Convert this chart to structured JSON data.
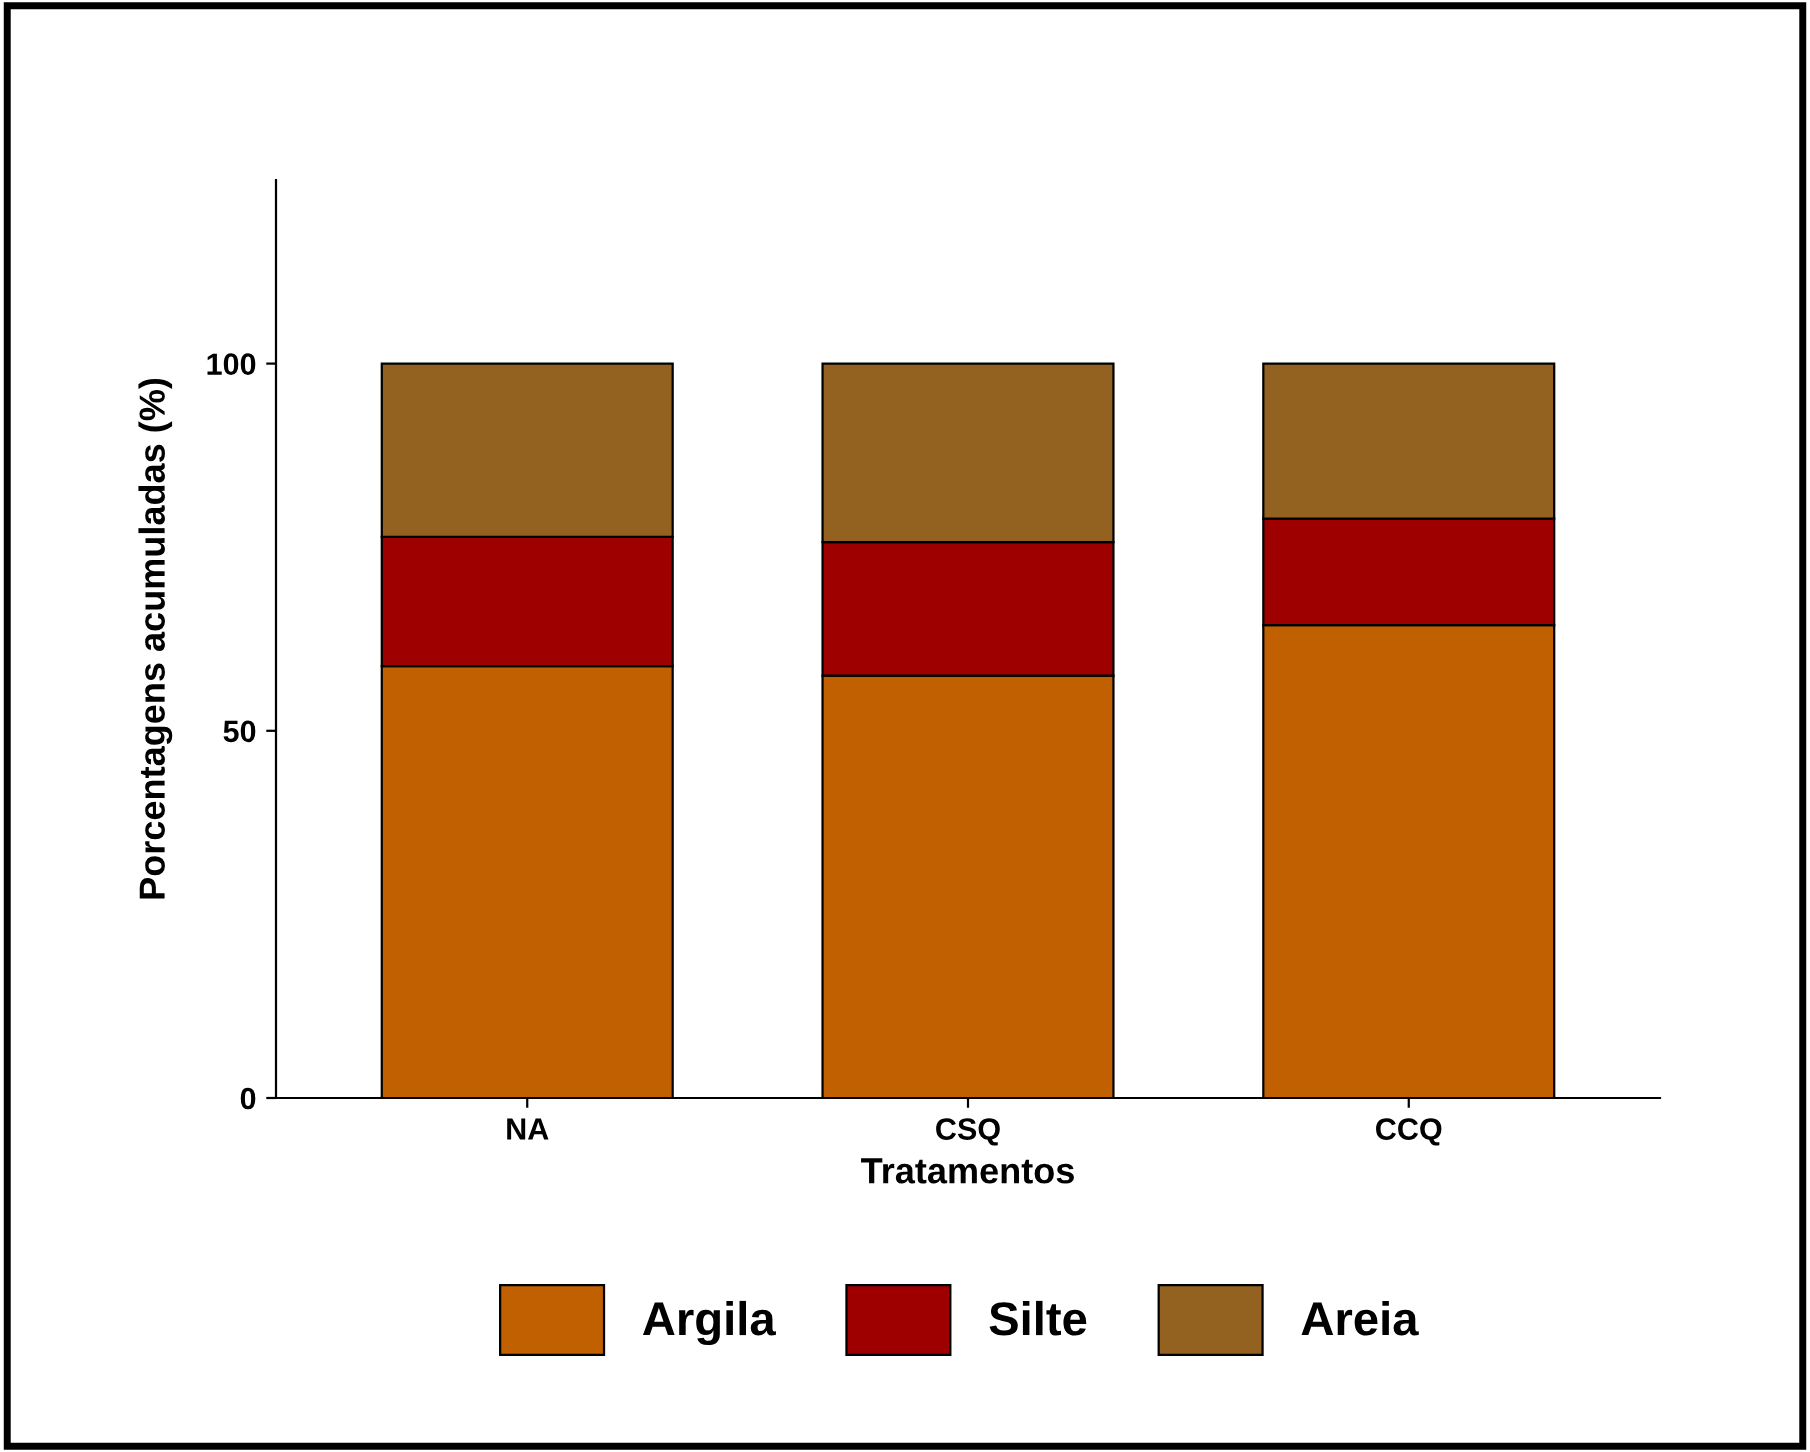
{
  "chart_data": {
    "type": "bar",
    "stacked": true,
    "xlabel": "Tratamentos",
    "ylabel": "Porcentagens acumuladas (%)",
    "categories": [
      "NA",
      "CSQ",
      "CCQ"
    ],
    "series": [
      {
        "name": "Argila",
        "color": "#c06000",
        "values": [
          58.8,
          57.5,
          64.4
        ]
      },
      {
        "name": "Silte",
        "color": "#9e0000",
        "values": [
          17.6,
          18.2,
          14.5
        ]
      },
      {
        "name": "Areia",
        "color": "#936221",
        "values": [
          23.6,
          24.3,
          21.1
        ]
      }
    ],
    "ylim": [
      0,
      125
    ],
    "yticks": [
      0,
      50,
      100
    ],
    "grid": false,
    "legend": "bottom"
  }
}
